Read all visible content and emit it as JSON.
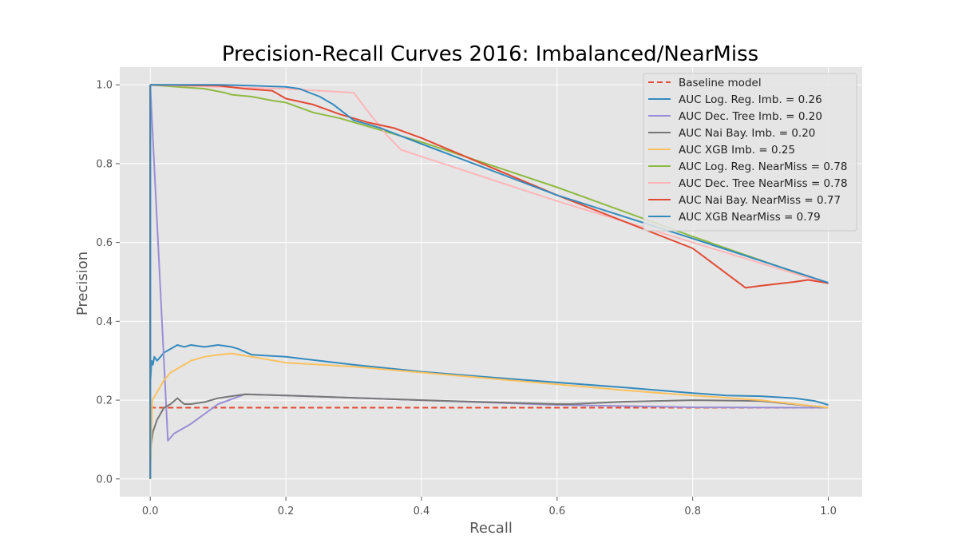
{
  "chart_data": {
    "type": "line",
    "title": "Precision-Recall Curves 2016: Imbalanced/NearMiss",
    "xlabel": "Recall",
    "ylabel": "Precision",
    "xlim": [
      -0.045,
      1.05
    ],
    "ylim": [
      -0.045,
      1.045
    ],
    "xticks": [
      "0.0",
      "0.2",
      "0.4",
      "0.6",
      "0.8",
      "1.0"
    ],
    "yticks": [
      "0.0",
      "0.2",
      "0.4",
      "0.6",
      "0.8",
      "1.0"
    ],
    "grid": true,
    "legend_position": "top-right",
    "series": [
      {
        "name": "Baseline model",
        "color": "#E24A33",
        "dashed": true,
        "x": [
          0,
          1
        ],
        "y": [
          0.181,
          0.181
        ]
      },
      {
        "name": "AUC Log. Reg. Imb. = 0.26",
        "color": "#348ABD",
        "x": [
          0,
          0.002,
          0.004,
          0.006,
          0.01,
          0.015,
          0.02,
          0.03,
          0.04,
          0.05,
          0.06,
          0.08,
          0.1,
          0.12,
          0.13,
          0.15,
          0.2,
          0.3,
          0.4,
          0.5,
          0.6,
          0.7,
          0.8,
          0.85,
          0.9,
          0.95,
          0.98,
          1.0
        ],
        "y": [
          0.24,
          0.3,
          0.29,
          0.31,
          0.3,
          0.31,
          0.32,
          0.33,
          0.34,
          0.335,
          0.34,
          0.335,
          0.34,
          0.335,
          0.33,
          0.315,
          0.31,
          0.29,
          0.272,
          0.258,
          0.245,
          0.232,
          0.218,
          0.212,
          0.21,
          0.205,
          0.198,
          0.188
        ]
      },
      {
        "name": "AUC Dec. Tree Imb. = 0.20",
        "color": "#988ED5",
        "x": [
          0,
          0.026,
          0.035,
          0.06,
          0.1,
          0.14,
          0.2,
          0.4,
          0.6,
          0.8,
          1.0
        ],
        "y": [
          1.0,
          0.097,
          0.115,
          0.14,
          0.19,
          0.215,
          0.212,
          0.2,
          0.188,
          0.182,
          0.181
        ],
        "vertical_start": true
      },
      {
        "name": "AUC Nai Bay. Imb. = 0.20",
        "color": "#777777",
        "x": [
          0,
          0.004,
          0.01,
          0.02,
          0.03,
          0.04,
          0.05,
          0.06,
          0.08,
          0.1,
          0.12,
          0.14,
          0.2,
          0.4,
          0.6,
          0.62,
          0.7,
          0.8,
          0.9,
          1.0
        ],
        "y": [
          0.07,
          0.12,
          0.15,
          0.18,
          0.19,
          0.205,
          0.19,
          0.19,
          0.195,
          0.205,
          0.21,
          0.215,
          0.212,
          0.2,
          0.19,
          0.19,
          0.196,
          0.2,
          0.198,
          0.181
        ]
      },
      {
        "name": "AUC XGB Imb. = 0.25",
        "color": "#FBC15E",
        "x": [
          0,
          0.003,
          0.01,
          0.02,
          0.03,
          0.04,
          0.05,
          0.06,
          0.08,
          0.1,
          0.12,
          0.15,
          0.2,
          0.3,
          0.4,
          0.5,
          0.6,
          0.7,
          0.8,
          0.9,
          1.0
        ],
        "y": [
          0.0,
          0.2,
          0.22,
          0.25,
          0.27,
          0.28,
          0.29,
          0.3,
          0.31,
          0.315,
          0.318,
          0.31,
          0.295,
          0.285,
          0.27,
          0.255,
          0.24,
          0.225,
          0.212,
          0.2,
          0.181
        ]
      },
      {
        "name": "AUC Log. Reg. NearMiss = 0.78",
        "color": "#8EBA42",
        "x": [
          0,
          0.04,
          0.08,
          0.11,
          0.12,
          0.15,
          0.18,
          0.2,
          0.24,
          0.28,
          0.32,
          0.36,
          0.4,
          0.6,
          0.8,
          1.0
        ],
        "y": [
          1.0,
          0.995,
          0.99,
          0.98,
          0.975,
          0.97,
          0.96,
          0.955,
          0.93,
          0.915,
          0.895,
          0.875,
          0.855,
          0.74,
          0.615,
          0.495
        ]
      },
      {
        "name": "AUC Dec. Tree NearMiss = 0.78",
        "color": "#FFB5B8",
        "x": [
          0,
          0.1,
          0.2,
          0.25,
          0.3,
          0.32,
          0.35,
          0.37,
          0.6,
          0.8,
          1.0
        ],
        "y": [
          1.0,
          0.995,
          0.99,
          0.985,
          0.98,
          0.935,
          0.87,
          0.835,
          0.705,
          0.6,
          0.495
        ]
      },
      {
        "name": "AUC Nai Bay. NearMiss = 0.77",
        "color": "#E24A33",
        "x": [
          0,
          0.1,
          0.14,
          0.18,
          0.2,
          0.24,
          0.28,
          0.32,
          0.36,
          0.4,
          0.6,
          0.8,
          0.878,
          0.9,
          0.95,
          0.97,
          1.0
        ],
        "y": [
          1.0,
          0.998,
          0.99,
          0.985,
          0.965,
          0.95,
          0.925,
          0.905,
          0.89,
          0.865,
          0.72,
          0.585,
          0.485,
          0.49,
          0.5,
          0.505,
          0.497
        ]
      },
      {
        "name": "AUC XGB NearMiss = 0.79",
        "color": "#348ABD",
        "x": [
          0,
          0.05,
          0.1,
          0.15,
          0.2,
          0.22,
          0.25,
          0.27,
          0.3,
          0.34,
          0.4,
          0.6,
          0.8,
          1.0
        ],
        "y": [
          1.0,
          1.0,
          1.0,
          0.998,
          0.995,
          0.99,
          0.97,
          0.95,
          0.91,
          0.89,
          0.85,
          0.72,
          0.61,
          0.498
        ]
      }
    ]
  }
}
